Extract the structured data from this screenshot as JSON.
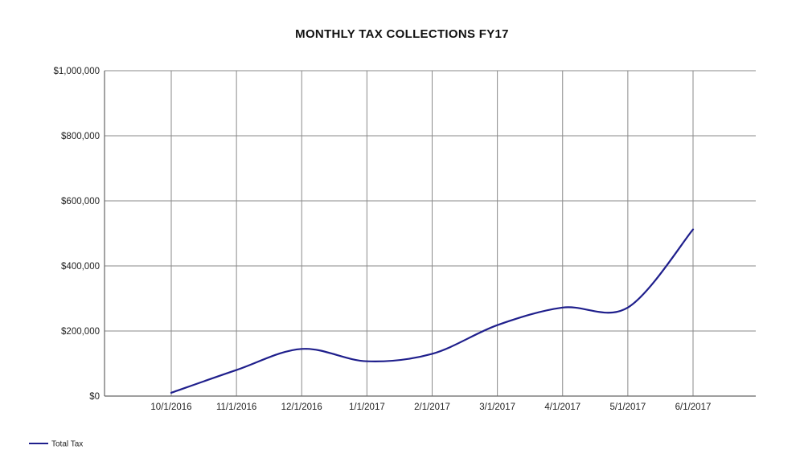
{
  "chart_data": {
    "type": "line",
    "title": "MONTHLY TAX COLLECTIONS FY17",
    "xlabel": "",
    "ylabel": "",
    "categories": [
      "10/1/2016",
      "11/1/2016",
      "12/1/2016",
      "1/1/2017",
      "2/1/2017",
      "3/1/2017",
      "4/1/2017",
      "5/1/2017",
      "6/1/2017"
    ],
    "series": [
      {
        "name": "Total Tax",
        "color": "#1f1f8c",
        "values": [
          10000,
          80000,
          145000,
          107000,
          130000,
          218000,
          272000,
          272000,
          512000
        ]
      }
    ],
    "ylim": [
      0,
      1000000
    ],
    "yticks": [
      0,
      200000,
      400000,
      600000,
      800000,
      1000000
    ],
    "ytick_labels": [
      "$0",
      "$200,000",
      "$400,000",
      "$600,000",
      "$800,000",
      "$1,000,000"
    ],
    "grid": true,
    "legend": "bottom-left"
  }
}
